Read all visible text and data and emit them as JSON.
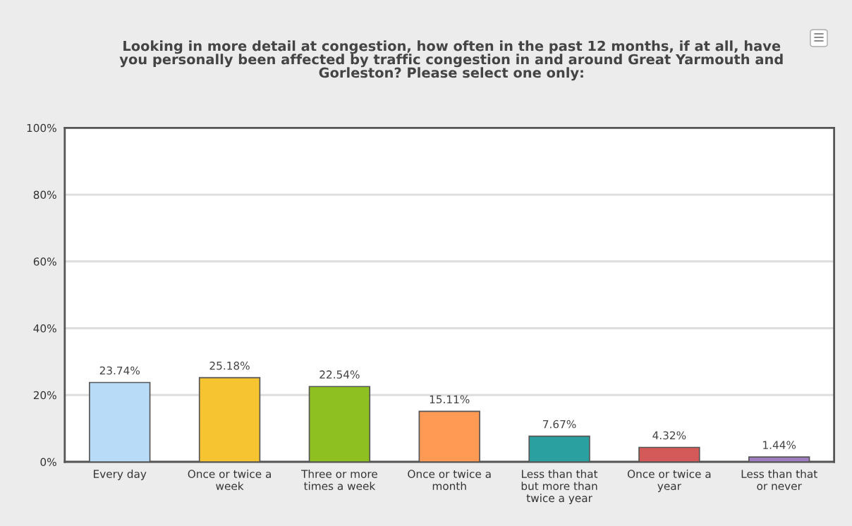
{
  "chart_data": {
    "type": "bar",
    "title": "Looking in more detail at congestion, how often in the past 12 months, if at all, have\nyou personally been affected by traffic congestion in and around Great Yarmouth and\nGorleston? Please select one only:",
    "categories": [
      "Every day",
      "Once or twice a\nweek",
      "Three or more\ntimes a week",
      "Once or twice a\nmonth",
      "Less than that\nbut more than\ntwice a year",
      "Once or twice a\nyear",
      "Less than that\nor never"
    ],
    "values": [
      23.74,
      25.18,
      22.54,
      15.11,
      7.67,
      4.32,
      1.44
    ],
    "colors": [
      "#b8dcf8",
      "#f6c430",
      "#8fc021",
      "#ff9a55",
      "#2aa0a0",
      "#d45a5a",
      "#a07cc0"
    ],
    "value_labels": [
      "23.74%",
      "25.18%",
      "22.54%",
      "15.11%",
      "7.67%",
      "4.32%",
      "1.44%"
    ],
    "ylim": [
      0,
      100
    ],
    "yticks": [
      {
        "value": 0,
        "label": "0%"
      },
      {
        "value": 20,
        "label": "20%"
      },
      {
        "value": 40,
        "label": "40%"
      },
      {
        "value": 60,
        "label": "60%"
      },
      {
        "value": 80,
        "label": "80%"
      },
      {
        "value": 100,
        "label": "100%"
      }
    ],
    "grid": "y"
  }
}
